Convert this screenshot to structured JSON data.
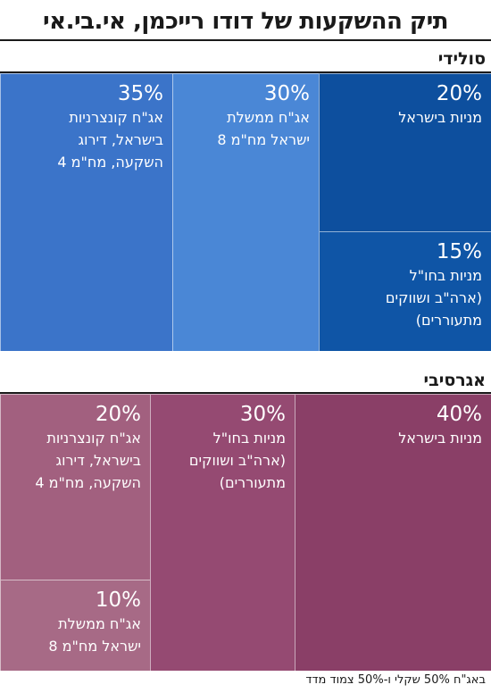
{
  "title": "תיק ההשקעות של דודו רייכמן, אי.בי.אי",
  "footnote": "באג\"ח 50% שקלי ו-50% צמוד מדד",
  "colors": {
    "solid_light": "#3b74c9",
    "solid_mid": "#4a87d6",
    "solid_dark": "#0d4f9e",
    "solid_dark2": "#0f55a6",
    "aggr_dark": "#8a3f67",
    "aggr_mid": "#954a72",
    "aggr_light": "#a2607f",
    "aggr_light2": "#a76a86"
  },
  "chart_data": [
    {
      "type": "treemap",
      "title": "סולידי",
      "series": [
        {
          "label": "מניות בישראל",
          "pct_text": "20%",
          "value": 20
        },
        {
          "label": "מניות בחו\"ל\n(ארה\"ב ושווקים\nמתעוררים)",
          "pct_text": "15%",
          "value": 15
        },
        {
          "label": "אג\"ח ממשלת\nישראל מח\"מ 8",
          "pct_text": "30%",
          "value": 30
        },
        {
          "label": "אג\"ח קונצרניות\nבישראל, דירוג\nהשקעה, מח\"מ 4",
          "pct_text": "35%",
          "value": 35
        }
      ]
    },
    {
      "type": "treemap",
      "title": "אגרסיבי",
      "series": [
        {
          "label": "מניות בישראל",
          "pct_text": "40%",
          "value": 40
        },
        {
          "label": "מניות בחו\"ל\n(ארה\"ב ושווקים\nמתעוררים)",
          "pct_text": "30%",
          "value": 30
        },
        {
          "label": "אג\"ח קונצרניות\nבישראל, דירוג\nהשקעה, מח\"מ 4",
          "pct_text": "20%",
          "value": 20
        },
        {
          "label": "אג\"ח ממשלת\nישראל מח\"מ 8",
          "pct_text": "10%",
          "value": 10
        }
      ]
    }
  ]
}
